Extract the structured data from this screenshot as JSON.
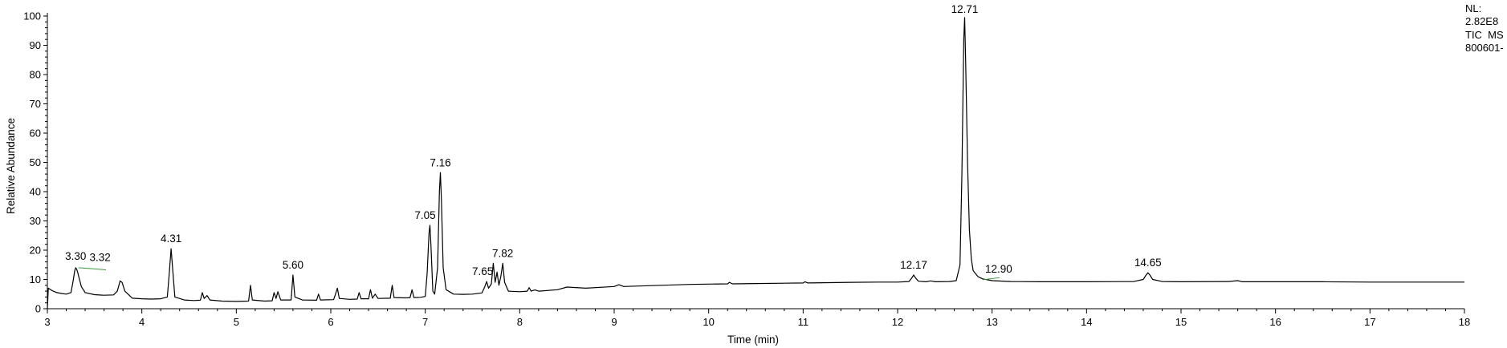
{
  "chart_data": {
    "type": "line",
    "title": "",
    "xlabel": "Time (min)",
    "ylabel": "Relative Abundance",
    "xlim": [
      3,
      18
    ],
    "ylim": [
      0,
      100
    ],
    "x_ticks": [
      "3",
      "4",
      "5",
      "6",
      "7",
      "8",
      "9",
      "10",
      "11",
      "12",
      "13",
      "14",
      "15",
      "16",
      "17",
      "18"
    ],
    "y_ticks": [
      "0",
      "10",
      "20",
      "30",
      "40",
      "50",
      "60",
      "70",
      "80",
      "90",
      "100"
    ],
    "grid": false,
    "info": {
      "nl_label": "NL:",
      "nl_value": "2.82E8",
      "scan_type": "TIC  MS",
      "file": "800601-"
    },
    "series": [
      {
        "values": [
          [
            3.0,
            0.0
          ],
          [
            3.01,
            7.0
          ],
          [
            3.05,
            6.2
          ],
          [
            3.1,
            5.5
          ],
          [
            3.15,
            5.2
          ],
          [
            3.2,
            5.0
          ],
          [
            3.25,
            5.5
          ],
          [
            3.27,
            9.0
          ],
          [
            3.29,
            13.0
          ],
          [
            3.3,
            14.0
          ],
          [
            3.31,
            13.5
          ],
          [
            3.32,
            12.5
          ],
          [
            3.34,
            10.0
          ],
          [
            3.36,
            7.5
          ],
          [
            3.4,
            5.5
          ],
          [
            3.5,
            4.8
          ],
          [
            3.6,
            4.6
          ],
          [
            3.7,
            4.7
          ],
          [
            3.74,
            6.0
          ],
          [
            3.77,
            9.5
          ],
          [
            3.79,
            9.0
          ],
          [
            3.82,
            6.0
          ],
          [
            3.9,
            3.6
          ],
          [
            4.0,
            3.4
          ],
          [
            4.1,
            3.3
          ],
          [
            4.2,
            3.4
          ],
          [
            4.27,
            4.0
          ],
          [
            4.29,
            12.0
          ],
          [
            4.31,
            20.5
          ],
          [
            4.33,
            12.0
          ],
          [
            4.35,
            4.0
          ],
          [
            4.45,
            3.0
          ],
          [
            4.55,
            2.8
          ],
          [
            4.62,
            2.9
          ],
          [
            4.64,
            5.5
          ],
          [
            4.66,
            3.5
          ],
          [
            4.69,
            4.5
          ],
          [
            4.72,
            3.0
          ],
          [
            4.85,
            2.6
          ],
          [
            5.0,
            2.5
          ],
          [
            5.13,
            2.6
          ],
          [
            5.15,
            8.0
          ],
          [
            5.17,
            3.0
          ],
          [
            5.3,
            2.6
          ],
          [
            5.38,
            2.7
          ],
          [
            5.4,
            5.5
          ],
          [
            5.42,
            3.5
          ],
          [
            5.44,
            5.8
          ],
          [
            5.47,
            3.0
          ],
          [
            5.58,
            3.0
          ],
          [
            5.6,
            11.5
          ],
          [
            5.62,
            4.0
          ],
          [
            5.7,
            3.0
          ],
          [
            5.85,
            2.9
          ],
          [
            5.87,
            5.0
          ],
          [
            5.89,
            3.0
          ],
          [
            6.03,
            3.1
          ],
          [
            6.05,
            5.0
          ],
          [
            6.07,
            7.0
          ],
          [
            6.09,
            3.5
          ],
          [
            6.2,
            3.2
          ],
          [
            6.28,
            3.3
          ],
          [
            6.3,
            5.5
          ],
          [
            6.32,
            3.4
          ],
          [
            6.4,
            3.4
          ],
          [
            6.42,
            6.5
          ],
          [
            6.44,
            3.6
          ],
          [
            6.47,
            5.0
          ],
          [
            6.5,
            3.5
          ],
          [
            6.63,
            3.6
          ],
          [
            6.65,
            8.0
          ],
          [
            6.67,
            3.8
          ],
          [
            6.8,
            3.7
          ],
          [
            6.84,
            3.8
          ],
          [
            6.86,
            6.5
          ],
          [
            6.88,
            3.8
          ],
          [
            6.95,
            3.9
          ],
          [
            7.0,
            4.2
          ],
          [
            7.02,
            12.0
          ],
          [
            7.04,
            26.0
          ],
          [
            7.05,
            28.5
          ],
          [
            7.06,
            22.0
          ],
          [
            7.08,
            6.0
          ],
          [
            7.1,
            5.0
          ],
          [
            7.13,
            14.0
          ],
          [
            7.15,
            40.0
          ],
          [
            7.16,
            46.5
          ],
          [
            7.17,
            38.0
          ],
          [
            7.19,
            14.0
          ],
          [
            7.22,
            6.5
          ],
          [
            7.3,
            5.0
          ],
          [
            7.4,
            4.9
          ],
          [
            7.5,
            5.0
          ],
          [
            7.6,
            5.4
          ],
          [
            7.63,
            7.5
          ],
          [
            7.65,
            9.3
          ],
          [
            7.67,
            7.0
          ],
          [
            7.7,
            8.5
          ],
          [
            7.72,
            15.5
          ],
          [
            7.74,
            9.0
          ],
          [
            7.76,
            12.5
          ],
          [
            7.78,
            8.0
          ],
          [
            7.8,
            11.0
          ],
          [
            7.82,
            15.5
          ],
          [
            7.84,
            9.0
          ],
          [
            7.88,
            6.0
          ],
          [
            8.0,
            5.8
          ],
          [
            8.08,
            6.0
          ],
          [
            8.1,
            7.2
          ],
          [
            8.12,
            6.0
          ],
          [
            8.16,
            6.4
          ],
          [
            8.2,
            6.0
          ],
          [
            8.4,
            6.5
          ],
          [
            8.5,
            7.4
          ],
          [
            8.7,
            7.0
          ],
          [
            9.0,
            7.6
          ],
          [
            9.05,
            8.2
          ],
          [
            9.1,
            7.6
          ],
          [
            9.5,
            8.0
          ],
          [
            9.8,
            8.3
          ],
          [
            10.0,
            8.4
          ],
          [
            10.2,
            8.5
          ],
          [
            10.22,
            9.0
          ],
          [
            10.25,
            8.5
          ],
          [
            10.5,
            8.6
          ],
          [
            10.8,
            8.7
          ],
          [
            11.0,
            8.8
          ],
          [
            11.02,
            9.2
          ],
          [
            11.05,
            8.8
          ],
          [
            11.5,
            9.0
          ],
          [
            11.8,
            9.1
          ],
          [
            12.0,
            9.1
          ],
          [
            12.12,
            9.3
          ],
          [
            12.15,
            10.5
          ],
          [
            12.17,
            11.5
          ],
          [
            12.19,
            10.5
          ],
          [
            12.22,
            9.4
          ],
          [
            12.3,
            9.2
          ],
          [
            12.35,
            9.5
          ],
          [
            12.4,
            9.2
          ],
          [
            12.55,
            9.3
          ],
          [
            12.62,
            9.6
          ],
          [
            12.66,
            15.0
          ],
          [
            12.68,
            45.0
          ],
          [
            12.7,
            92.0
          ],
          [
            12.71,
            99.5
          ],
          [
            12.72,
            85.0
          ],
          [
            12.74,
            50.0
          ],
          [
            12.76,
            27.0
          ],
          [
            12.78,
            17.0
          ],
          [
            12.8,
            13.0
          ],
          [
            12.85,
            11.0
          ],
          [
            12.9,
            10.2
          ],
          [
            13.0,
            9.6
          ],
          [
            13.2,
            9.3
          ],
          [
            13.5,
            9.2
          ],
          [
            14.0,
            9.2
          ],
          [
            14.5,
            9.3
          ],
          [
            14.6,
            10.0
          ],
          [
            14.63,
            11.5
          ],
          [
            14.65,
            12.3
          ],
          [
            14.67,
            11.5
          ],
          [
            14.7,
            10.0
          ],
          [
            14.8,
            9.3
          ],
          [
            15.0,
            9.2
          ],
          [
            15.5,
            9.3
          ],
          [
            15.6,
            9.6
          ],
          [
            15.65,
            9.2
          ],
          [
            16.0,
            9.2
          ],
          [
            16.5,
            9.2
          ],
          [
            17.0,
            9.1
          ],
          [
            17.5,
            9.1
          ],
          [
            18.0,
            9.1
          ]
        ]
      }
    ],
    "annotations": [
      {
        "text": "3.30",
        "x": 3.3,
        "y": 14.0
      },
      {
        "text": "3.32",
        "x": 3.32,
        "y": 12.5
      },
      {
        "text": "4.31",
        "x": 4.31,
        "y": 20.5
      },
      {
        "text": "5.60",
        "x": 5.6,
        "y": 11.5
      },
      {
        "text": "7.05",
        "x": 7.05,
        "y": 28.5
      },
      {
        "text": "7.16",
        "x": 7.16,
        "y": 46.5
      },
      {
        "text": "7.65",
        "x": 7.65,
        "y": 9.3
      },
      {
        "text": "7.82",
        "x": 7.82,
        "y": 15.5
      },
      {
        "text": "12.17",
        "x": 12.17,
        "y": 11.5
      },
      {
        "text": "12.71",
        "x": 12.71,
        "y": 99.5
      },
      {
        "text": "12.90",
        "x": 12.9,
        "y": 10.2
      },
      {
        "text": "14.65",
        "x": 14.65,
        "y": 12.3
      }
    ],
    "colors": {
      "trace": "#000000",
      "axis": "#000000",
      "leader": "#3a9a3a"
    }
  }
}
